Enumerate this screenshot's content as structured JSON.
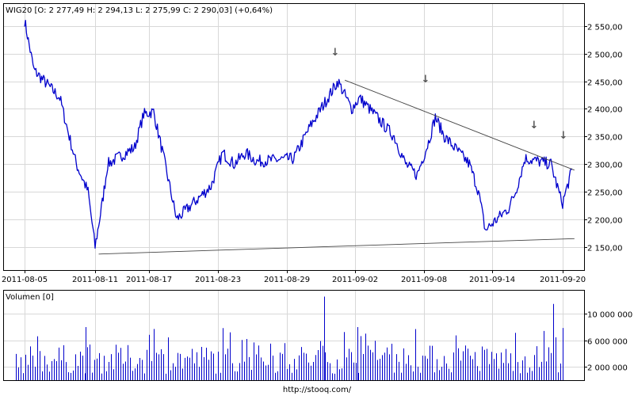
{
  "chart_data": [
    {
      "type": "candlestick",
      "title": "WIG20 [O: 2 277,49  H: 2 294,13  L: 2 275,99  C: 2 290,03] (+0,64%)",
      "y_ticks": [
        "2 150,00",
        "2 200,00",
        "2 250,00",
        "2 300,00",
        "2 350,00",
        "2 400,00",
        "2 450,00",
        "2 500,00",
        "2 550,00"
      ],
      "y_tick_values": [
        2150,
        2200,
        2250,
        2300,
        2350,
        2400,
        2450,
        2500,
        2550
      ],
      "ylim": [
        2108,
        2590
      ],
      "x_ticks": [
        "2011-08-05",
        "2011-08-11",
        "2011-08-17",
        "2011-08-23",
        "2011-08-29",
        "2011-09-02",
        "2011-09-08",
        "2011-09-14",
        "2011-09-20"
      ],
      "grid": true,
      "series_color": "#0000cc",
      "approx_path": [
        {
          "x": "2011-08-05",
          "y": 2560
        },
        {
          "x": "2011-08-05",
          "y": 2470
        },
        {
          "x": "2011-08-08",
          "y": 2420
        },
        {
          "x": "2011-08-08",
          "y": 2350
        },
        {
          "x": "2011-08-09",
          "y": 2300
        },
        {
          "x": "2011-08-10",
          "y": 2250
        },
        {
          "x": "2011-08-11",
          "y": 2150
        },
        {
          "x": "2011-08-11",
          "y": 2230
        },
        {
          "x": "2011-08-12",
          "y": 2300
        },
        {
          "x": "2011-08-15",
          "y": 2330
        },
        {
          "x": "2011-08-16",
          "y": 2390
        },
        {
          "x": "2011-08-17",
          "y": 2395
        },
        {
          "x": "2011-08-18",
          "y": 2300
        },
        {
          "x": "2011-08-19",
          "y": 2200
        },
        {
          "x": "2011-08-22",
          "y": 2260
        },
        {
          "x": "2011-08-23",
          "y": 2320
        },
        {
          "x": "2011-08-24",
          "y": 2300
        },
        {
          "x": "2011-08-25",
          "y": 2320
        },
        {
          "x": "2011-08-26",
          "y": 2305
        },
        {
          "x": "2011-08-29",
          "y": 2310
        },
        {
          "x": "2011-08-30",
          "y": 2370
        },
        {
          "x": "2011-08-31",
          "y": 2420
        },
        {
          "x": "2011-09-01",
          "y": 2450
        },
        {
          "x": "2011-09-01",
          "y": 2400
        },
        {
          "x": "2011-09-02",
          "y": 2420
        },
        {
          "x": "2011-09-05",
          "y": 2350
        },
        {
          "x": "2011-09-06",
          "y": 2300
        },
        {
          "x": "2011-09-07",
          "y": 2280
        },
        {
          "x": "2011-09-08",
          "y": 2340
        },
        {
          "x": "2011-09-09",
          "y": 2385
        },
        {
          "x": "2011-09-09",
          "y": 2350
        },
        {
          "x": "2011-09-12",
          "y": 2300
        },
        {
          "x": "2011-09-12",
          "y": 2250
        },
        {
          "x": "2011-09-13",
          "y": 2180
        },
        {
          "x": "2011-09-14",
          "y": 2200
        },
        {
          "x": "2011-09-15",
          "y": 2220
        },
        {
          "x": "2011-09-16",
          "y": 2250
        },
        {
          "x": "2011-09-16",
          "y": 2310
        },
        {
          "x": "2011-09-19",
          "y": 2300
        },
        {
          "x": "2011-09-19",
          "y": 2240
        },
        {
          "x": "2011-09-20",
          "y": 2230
        },
        {
          "x": "2011-09-20",
          "y": 2290
        }
      ],
      "trendlines": [
        {
          "from": {
            "x": "2011-09-01",
            "y": 2452
          },
          "to": {
            "x": "2011-09-21",
            "y": 2289
          }
        },
        {
          "from": {
            "x": "2011-08-11",
            "y": 2137
          },
          "to": {
            "x": "2011-09-21",
            "y": 2165
          }
        }
      ],
      "annotations": [
        "↓",
        "↓",
        "↓",
        "↓"
      ]
    },
    {
      "type": "bar",
      "title": "Volumen [0]",
      "y_ticks": [
        "2 000 000",
        "6 000 000",
        "10 000 000"
      ],
      "y_tick_values": [
        2000000,
        6000000,
        10000000
      ],
      "ylim": [
        0,
        13500000
      ],
      "bar_color": "#0000cc",
      "typical_max": 8000000,
      "peaks": [
        {
          "x": "2011-08-31",
          "y": 12600000
        },
        {
          "x": "2011-09-19",
          "y": 11500000
        },
        {
          "x": "2011-08-10",
          "y": 8000000
        },
        {
          "x": "2011-09-02",
          "y": 8000000
        }
      ]
    }
  ],
  "footer": {
    "url": "http://stooq.com/"
  }
}
